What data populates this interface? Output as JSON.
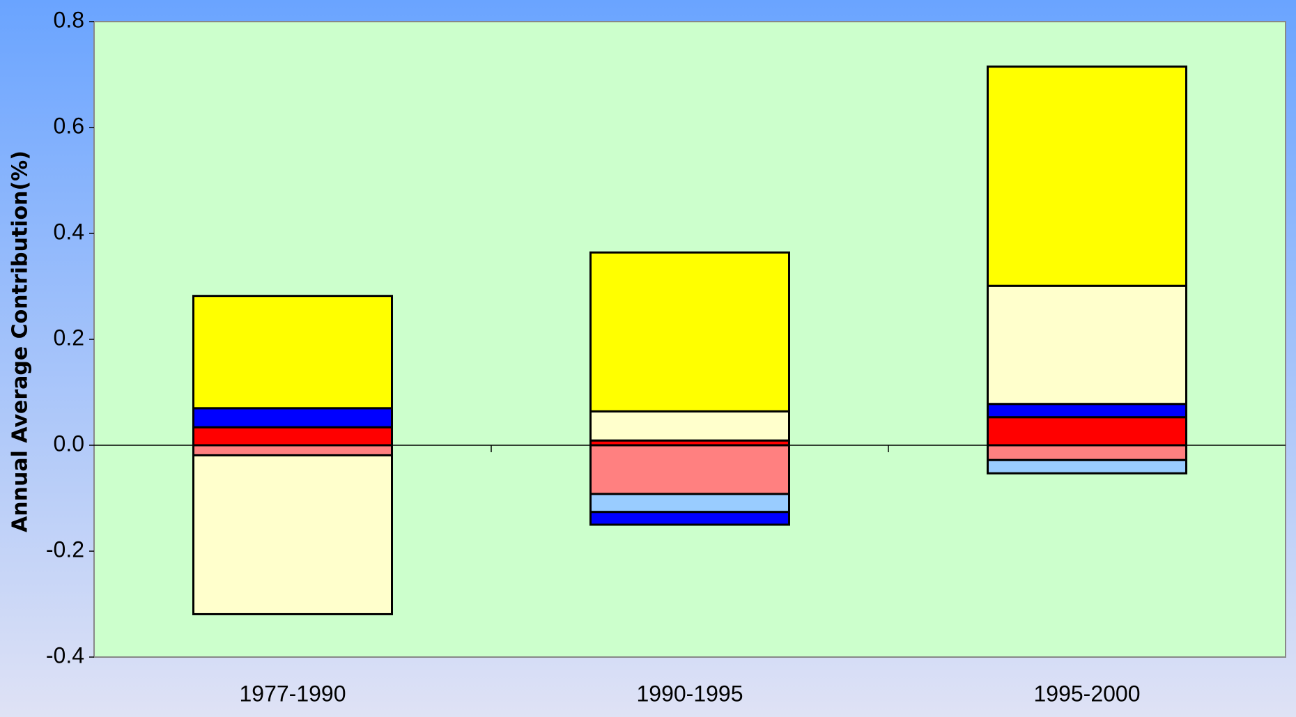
{
  "chart_data": {
    "type": "stacked_bar",
    "ylabel": "Annual Average Contribution(%)",
    "categories": [
      "1977-1990",
      "1990-1995",
      "1995-2000"
    ],
    "series": [
      {
        "color": "#ff8080",
        "values": [
          -0.019,
          -0.092,
          -0.028
        ]
      },
      {
        "color": "#ff0000",
        "values": [
          0.034,
          0.009,
          0.053
        ]
      },
      {
        "color": "#99ccff",
        "values": [
          null,
          -0.034,
          -0.025
        ]
      },
      {
        "color": "#0000ff",
        "values": [
          0.036,
          -0.024,
          0.025
        ]
      },
      {
        "color": "#ffffcc",
        "values": [
          -0.3,
          0.055,
          0.223
        ]
      },
      {
        "color": "#ffff00",
        "values": [
          0.212,
          0.3,
          0.414
        ]
      }
    ],
    "ylim": [
      -0.4,
      0.8
    ],
    "yticks": [
      -0.4,
      -0.2,
      {
        "value": 0,
        "label": "0.0"
      },
      0.2,
      0.4,
      0.6,
      0.8
    ],
    "plot_background": "#ccffcc"
  }
}
